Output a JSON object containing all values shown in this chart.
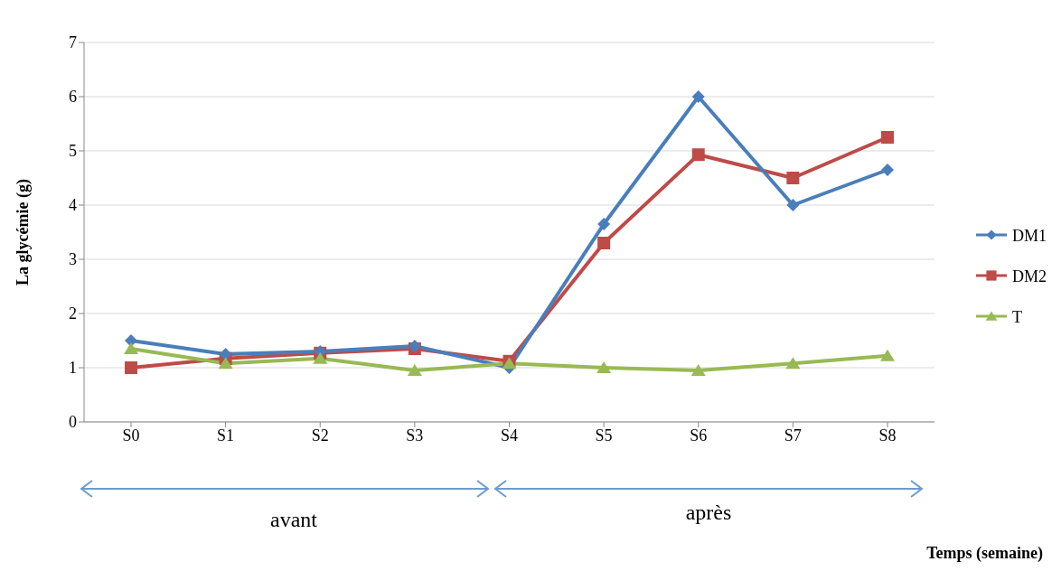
{
  "chart_data": {
    "type": "line",
    "ylabel": "La glycémie (g)",
    "categories": [
      "S0",
      "S1",
      "S2",
      "S3",
      "S4",
      "S5",
      "S6",
      "S7",
      "S8"
    ],
    "series": [
      {
        "name": "DM1",
        "color": "#4a7ebb",
        "marker": "diamond",
        "values": [
          1.5,
          1.25,
          1.3,
          1.4,
          1.0,
          3.65,
          6.0,
          4.0,
          4.65
        ]
      },
      {
        "name": "DM2",
        "color": "#be4b48",
        "marker": "square",
        "values": [
          1.0,
          1.17,
          1.27,
          1.35,
          1.12,
          3.3,
          4.93,
          4.5,
          5.25
        ]
      },
      {
        "name": "T",
        "color": "#98b954",
        "marker": "triangle",
        "values": [
          1.35,
          1.08,
          1.17,
          0.95,
          1.08,
          1.0,
          0.95,
          1.08,
          1.22
        ]
      }
    ],
    "ylim": [
      0,
      7
    ],
    "yticks": [
      0,
      1,
      2,
      3,
      4,
      5,
      6,
      7
    ],
    "grid": "y",
    "legend": "right",
    "annotations": [
      "avant",
      "après",
      "Temps (semaine)"
    ]
  }
}
